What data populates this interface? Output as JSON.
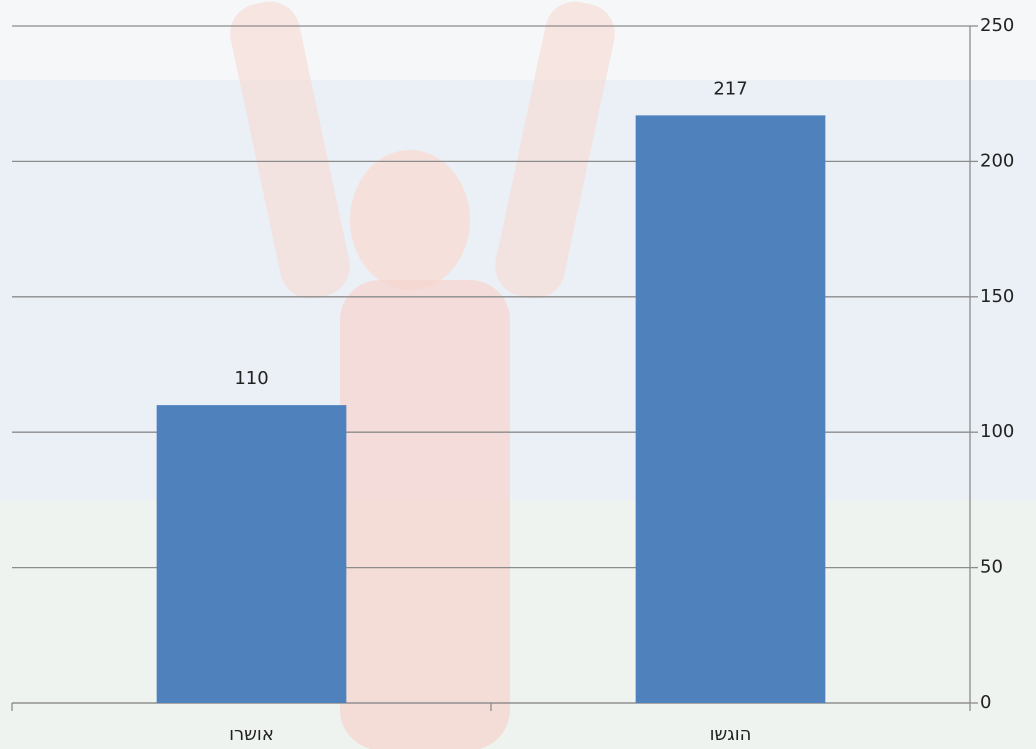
{
  "chart_data": {
    "type": "bar",
    "categories": [
      "אושרו",
      "הוגשו"
    ],
    "values": [
      110,
      217
    ],
    "color": "#4f81bd",
    "ylim": [
      0,
      250
    ],
    "yticks": [
      0,
      50,
      100,
      150,
      200,
      250
    ],
    "grid": true
  }
}
